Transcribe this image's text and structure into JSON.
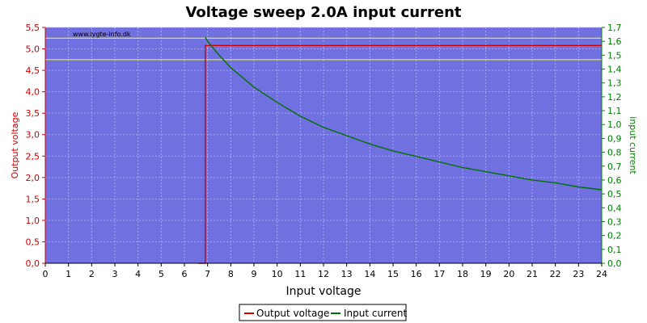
{
  "chart_data": {
    "type": "line",
    "title": "Voltage sweep 2.0A input current",
    "watermark": "www.lygte-info.dk",
    "xlabel": "Input voltage",
    "ylabel_left": "Output voltage",
    "ylabel_right": "input current",
    "xlim": [
      0,
      24
    ],
    "ylim_left": [
      0,
      5.5
    ],
    "ylim_right": [
      0,
      1.7
    ],
    "x_ticks": [
      "0",
      "1",
      "2",
      "3",
      "4",
      "5",
      "6",
      "7",
      "8",
      "9",
      "10",
      "11",
      "12",
      "13",
      "14",
      "15",
      "16",
      "17",
      "18",
      "19",
      "20",
      "21",
      "22",
      "23",
      "24"
    ],
    "y_left_ticks": [
      "0,0",
      "0,5",
      "1,0",
      "1,5",
      "2,0",
      "2,5",
      "3,0",
      "3,5",
      "4,0",
      "4,5",
      "5,0",
      "5,5"
    ],
    "y_right_ticks": [
      "0,0",
      "0,1",
      "0,2",
      "0,3",
      "0,4",
      "0,5",
      "0,6",
      "0,7",
      "0,8",
      "0,9",
      "1,0",
      "1,1",
      "1,2",
      "1,3",
      "1,4",
      "1,5",
      "1,6",
      "1,7"
    ],
    "reference_lines_left": [
      5.25,
      4.75
    ],
    "grid": true,
    "legend_position": "bottom-center",
    "colors": {
      "plot_background": "#7070e0",
      "grid": "#a8a8f0",
      "output_voltage": "#d00000",
      "input_current": "#007000",
      "reference": "#ffff00",
      "left_axis": "#d00000",
      "right_axis": "#008000"
    },
    "series": [
      {
        "name": "Output voltage",
        "axis": "left",
        "x": [
          6.6,
          6.9,
          6.9,
          6.95,
          24
        ],
        "y": [
          0.0,
          0.0,
          5.08,
          5.08,
          5.08
        ]
      },
      {
        "name": "Input current",
        "axis": "right",
        "x": [
          6.9,
          7.0,
          7.5,
          8,
          8.5,
          9,
          10,
          11,
          12,
          13,
          14,
          15,
          16,
          17,
          18,
          19,
          20,
          21,
          22,
          23,
          24
        ],
        "y": [
          1.63,
          1.6,
          1.5,
          1.41,
          1.34,
          1.27,
          1.16,
          1.06,
          0.98,
          0.92,
          0.86,
          0.81,
          0.77,
          0.73,
          0.69,
          0.66,
          0.63,
          0.6,
          0.58,
          0.55,
          0.53
        ]
      }
    ]
  }
}
